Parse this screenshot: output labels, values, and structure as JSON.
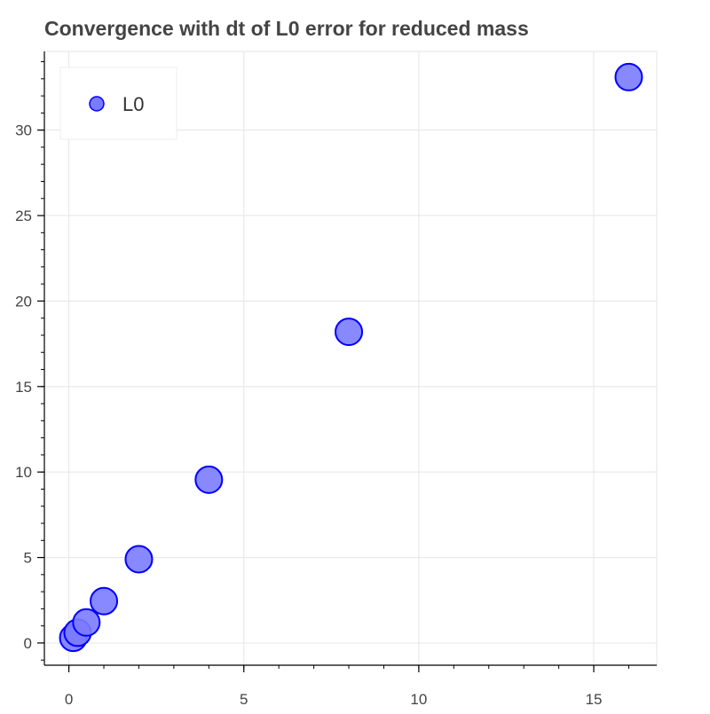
{
  "chart_data": {
    "type": "scatter",
    "title": "Convergence with dt of L0 error for reduced mass",
    "xlabel": "",
    "ylabel": "",
    "xlim": [
      -0.7,
      16.8
    ],
    "ylim": [
      -1.3,
      34.6
    ],
    "x_ticks": [
      0,
      5,
      10,
      15
    ],
    "y_ticks": [
      0,
      5,
      10,
      15,
      20,
      25,
      30
    ],
    "x_minor_step": 1,
    "y_minor_step": 1,
    "grid": true,
    "legend_position": "top-left",
    "series": [
      {
        "name": "L0",
        "fill_color": "#7b7bff",
        "line_color": "#0000ff",
        "x": [
          0.125,
          0.25,
          0.5,
          1,
          2,
          4,
          8,
          16
        ],
        "y": [
          0.3,
          0.6,
          1.2,
          2.45,
          4.9,
          9.55,
          18.2,
          33.1
        ]
      }
    ]
  }
}
